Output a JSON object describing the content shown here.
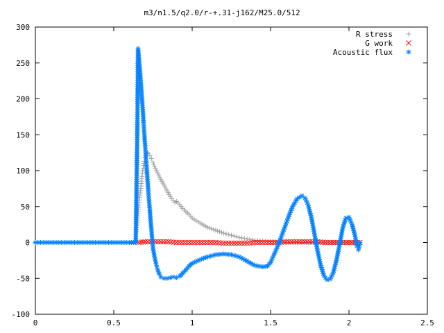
{
  "chart_data": {
    "type": "scatter",
    "title": "m3/n1.5/q2.0/r-+.31-j162/M25.0/512",
    "xlabel": "",
    "ylabel": "",
    "xlim": [
      0,
      2.5
    ],
    "ylim": [
      -100,
      300
    ],
    "x_ticks": [
      "0",
      "0.5",
      "1",
      "1.5",
      "2",
      "2.5"
    ],
    "x_tick_values": [
      0,
      0.5,
      1,
      1.5,
      2,
      2.5
    ],
    "y_ticks": [
      "300",
      "250",
      "200",
      "150",
      "100",
      "50",
      "0",
      "-50",
      "-100"
    ],
    "y_tick_values": [
      300,
      250,
      200,
      150,
      100,
      50,
      0,
      -50,
      -100
    ],
    "grid": false,
    "legend_position": "top-right",
    "series": [
      {
        "name": "R stress",
        "marker": "plus",
        "color": "#a0a0a0",
        "points": [
          [
            0.645,
            15
          ],
          [
            0.65,
            28
          ],
          [
            0.655,
            40
          ],
          [
            0.66,
            52
          ],
          [
            0.665,
            63
          ],
          [
            0.67,
            72
          ],
          [
            0.675,
            82
          ],
          [
            0.68,
            92
          ],
          [
            0.685,
            100
          ],
          [
            0.69,
            107
          ],
          [
            0.695,
            113
          ],
          [
            0.7,
            118
          ],
          [
            0.705,
            122
          ],
          [
            0.71,
            124
          ],
          [
            0.715,
            125
          ],
          [
            0.72,
            124
          ],
          [
            0.73,
            121
          ],
          [
            0.74,
            117
          ],
          [
            0.75,
            112
          ],
          [
            0.76,
            106
          ],
          [
            0.78,
            97
          ],
          [
            0.8,
            88
          ],
          [
            0.82,
            80
          ],
          [
            0.84,
            72
          ],
          [
            0.86,
            64
          ],
          [
            0.88,
            58
          ],
          [
            0.89,
            56
          ],
          [
            0.9,
            57
          ],
          [
            0.91,
            55
          ],
          [
            0.93,
            50
          ],
          [
            0.95,
            45
          ],
          [
            0.98,
            39
          ],
          [
            1.0,
            34
          ],
          [
            1.05,
            27
          ],
          [
            1.1,
            21
          ],
          [
            1.15,
            17
          ],
          [
            1.2,
            13
          ],
          [
            1.25,
            10
          ],
          [
            1.3,
            7
          ],
          [
            1.35,
            5
          ],
          [
            1.4,
            3
          ],
          [
            1.45,
            2
          ],
          [
            1.5,
            1
          ],
          [
            1.55,
            1
          ],
          [
            1.6,
            0
          ],
          [
            1.7,
            0
          ],
          [
            1.8,
            0
          ],
          [
            1.9,
            0
          ],
          [
            2.0,
            0
          ],
          [
            2.07,
            0
          ]
        ]
      },
      {
        "name": "G work",
        "marker": "cross",
        "color": "#ff0000",
        "points": [
          [
            0.66,
            0
          ],
          [
            0.7,
            1
          ],
          [
            0.75,
            1
          ],
          [
            0.8,
            1
          ],
          [
            0.85,
            1
          ],
          [
            0.9,
            0
          ],
          [
            0.95,
            0
          ],
          [
            1.0,
            0
          ],
          [
            1.05,
            0
          ],
          [
            1.1,
            0
          ],
          [
            1.15,
            0
          ],
          [
            1.2,
            -1
          ],
          [
            1.25,
            -1
          ],
          [
            1.3,
            -1
          ],
          [
            1.35,
            -1
          ],
          [
            1.4,
            0
          ],
          [
            1.45,
            0
          ],
          [
            1.5,
            0
          ],
          [
            1.55,
            0
          ],
          [
            1.6,
            1
          ],
          [
            1.65,
            1
          ],
          [
            1.7,
            1
          ],
          [
            1.75,
            1
          ],
          [
            1.8,
            1
          ],
          [
            1.85,
            0
          ],
          [
            1.9,
            0
          ],
          [
            1.95,
            0
          ],
          [
            2.0,
            0
          ],
          [
            2.05,
            0
          ],
          [
            2.07,
            0
          ]
        ]
      },
      {
        "name": "Acoustic flux",
        "marker": "star",
        "color": "#0080ff",
        "points": [
          [
            0.0,
            0
          ],
          [
            0.05,
            0
          ],
          [
            0.1,
            0
          ],
          [
            0.15,
            0
          ],
          [
            0.2,
            0
          ],
          [
            0.25,
            0
          ],
          [
            0.3,
            0
          ],
          [
            0.35,
            0
          ],
          [
            0.4,
            0
          ],
          [
            0.45,
            0
          ],
          [
            0.5,
            0
          ],
          [
            0.55,
            0
          ],
          [
            0.6,
            0
          ],
          [
            0.64,
            0
          ],
          [
            0.65,
            155
          ],
          [
            0.655,
            270
          ],
          [
            0.66,
            258
          ],
          [
            0.665,
            245
          ],
          [
            0.67,
            232
          ],
          [
            0.675,
            216
          ],
          [
            0.68,
            200
          ],
          [
            0.685,
            185
          ],
          [
            0.69,
            167
          ],
          [
            0.695,
            150
          ],
          [
            0.7,
            135
          ],
          [
            0.705,
            118
          ],
          [
            0.71,
            104
          ],
          [
            0.715,
            88
          ],
          [
            0.72,
            72
          ],
          [
            0.725,
            58
          ],
          [
            0.73,
            45
          ],
          [
            0.735,
            30
          ],
          [
            0.74,
            18
          ],
          [
            0.745,
            5
          ],
          [
            0.75,
            -8
          ],
          [
            0.76,
            -20
          ],
          [
            0.77,
            -30
          ],
          [
            0.78,
            -38
          ],
          [
            0.79,
            -44
          ],
          [
            0.8,
            -48
          ],
          [
            0.82,
            -50
          ],
          [
            0.84,
            -50
          ],
          [
            0.86,
            -49
          ],
          [
            0.88,
            -48
          ],
          [
            0.9,
            -49
          ],
          [
            0.92,
            -47
          ],
          [
            0.94,
            -43
          ],
          [
            0.96,
            -38
          ],
          [
            0.98,
            -33
          ],
          [
            1.0,
            -29
          ],
          [
            1.03,
            -26
          ],
          [
            1.06,
            -23
          ],
          [
            1.1,
            -20
          ],
          [
            1.15,
            -17
          ],
          [
            1.2,
            -16
          ],
          [
            1.25,
            -17
          ],
          [
            1.3,
            -20
          ],
          [
            1.35,
            -26
          ],
          [
            1.4,
            -32
          ],
          [
            1.45,
            -34
          ],
          [
            1.48,
            -33
          ],
          [
            1.5,
            -28
          ],
          [
            1.52,
            -18
          ],
          [
            1.55,
            -3
          ],
          [
            1.58,
            15
          ],
          [
            1.61,
            33
          ],
          [
            1.64,
            50
          ],
          [
            1.67,
            61
          ],
          [
            1.7,
            65
          ],
          [
            1.72,
            62
          ],
          [
            1.74,
            52
          ],
          [
            1.76,
            35
          ],
          [
            1.78,
            12
          ],
          [
            1.8,
            -12
          ],
          [
            1.82,
            -32
          ],
          [
            1.84,
            -46
          ],
          [
            1.86,
            -52
          ],
          [
            1.88,
            -51
          ],
          [
            1.9,
            -42
          ],
          [
            1.92,
            -25
          ],
          [
            1.94,
            -3
          ],
          [
            1.96,
            20
          ],
          [
            1.98,
            34
          ],
          [
            2.0,
            35
          ],
          [
            2.02,
            25
          ],
          [
            2.04,
            8
          ],
          [
            2.05,
            -5
          ],
          [
            2.06,
            -10
          ],
          [
            2.07,
            0
          ]
        ]
      }
    ]
  }
}
